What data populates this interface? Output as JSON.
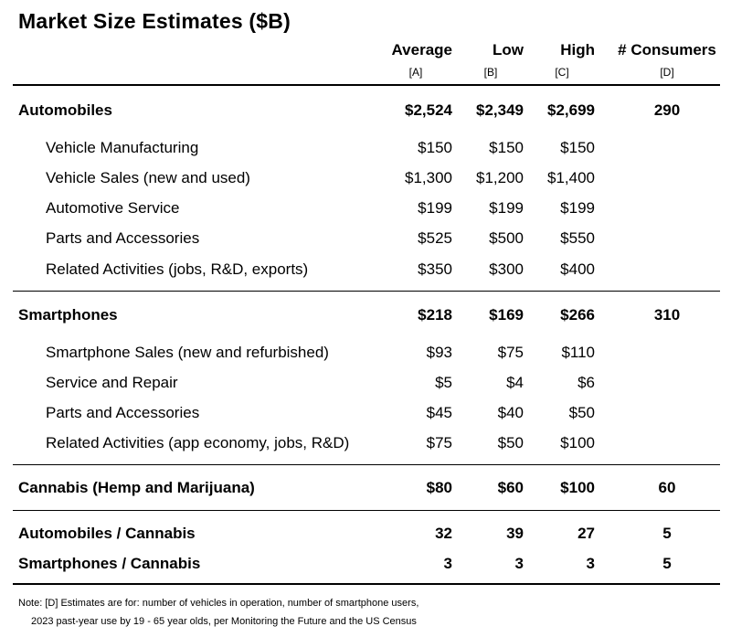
{
  "title": "Market Size Estimates ($B)",
  "columns": [
    {
      "label": "Average",
      "sub": "[A]"
    },
    {
      "label": "Low",
      "sub": "[B]"
    },
    {
      "label": "High",
      "sub": "[C]"
    },
    {
      "label": "# Consumers",
      "sub": "[D]"
    }
  ],
  "rows": [
    {
      "label": "Automobiles",
      "bold": true,
      "indent": false,
      "values": [
        "$2,524",
        "$2,349",
        "$2,699",
        "290"
      ]
    },
    {
      "label": "Vehicle Manufacturing",
      "bold": false,
      "indent": true,
      "values": [
        "$150",
        "$150",
        "$150",
        ""
      ]
    },
    {
      "label": "Vehicle Sales (new and used)",
      "bold": false,
      "indent": true,
      "values": [
        "$1,300",
        "$1,200",
        "$1,400",
        ""
      ]
    },
    {
      "label": "Automotive Service",
      "bold": false,
      "indent": true,
      "values": [
        "$199",
        "$199",
        "$199",
        ""
      ]
    },
    {
      "label": "Parts and Accessories",
      "bold": false,
      "indent": true,
      "values": [
        "$525",
        "$500",
        "$550",
        ""
      ]
    },
    {
      "label": "Related Activities (jobs, R&D, exports)",
      "bold": false,
      "indent": true,
      "values": [
        "$350",
        "$300",
        "$400",
        ""
      ]
    },
    {
      "label": "Smartphones",
      "bold": true,
      "indent": false,
      "values": [
        "$218",
        "$169",
        "$266",
        "310"
      ]
    },
    {
      "label": "Smartphone Sales (new and refurbished)",
      "bold": false,
      "indent": true,
      "values": [
        "$93",
        "$75",
        "$110",
        ""
      ]
    },
    {
      "label": "Service and Repair",
      "bold": false,
      "indent": true,
      "values": [
        "$5",
        "$4",
        "$6",
        ""
      ]
    },
    {
      "label": "Parts and Accessories",
      "bold": false,
      "indent": true,
      "values": [
        "$45",
        "$40",
        "$50",
        ""
      ]
    },
    {
      "label": "Related Activities (app economy, jobs, R&D)",
      "bold": false,
      "indent": true,
      "values": [
        "$75",
        "$50",
        "$100",
        ""
      ]
    },
    {
      "label": "Cannabis (Hemp and Marijuana)",
      "bold": true,
      "indent": false,
      "values": [
        "$80",
        "$60",
        "$100",
        "60"
      ]
    },
    {
      "label": "Automobiles / Cannabis",
      "bold": true,
      "indent": false,
      "values": [
        "32",
        "39",
        "27",
        "5"
      ]
    },
    {
      "label": "Smartphones / Cannabis",
      "bold": true,
      "indent": false,
      "values": [
        "3",
        "3",
        "3",
        "5"
      ]
    }
  ],
  "notes": [
    "Note: [D] Estimates are for: number of vehicles in operation, number of smartphone users,",
    "2023 past-year use by 19 - 65 year olds, per Monitoring the Future and the US Census"
  ]
}
